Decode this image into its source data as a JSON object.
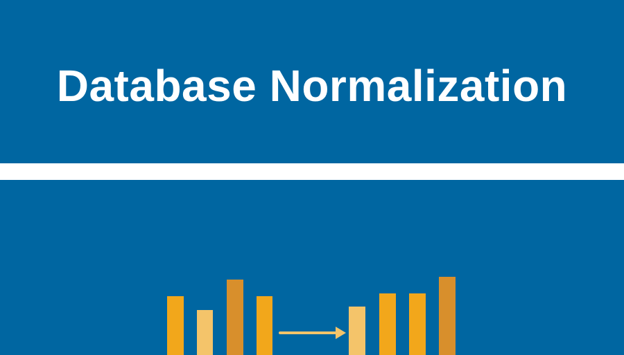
{
  "title": "Database Normalization",
  "colors": {
    "background": "#0066a1",
    "divider": "#ffffff",
    "title_text": "#ffffff",
    "bar_orange": "#f2a71b",
    "bar_light": "#f4c46a",
    "bar_dark": "#d88f2c",
    "arrow": "#f4c46a"
  },
  "illustration": {
    "name": "normalization-bars",
    "left_group": [
      "orange",
      "light",
      "dark",
      "orange"
    ],
    "arrow": "right-arrow",
    "right_group": [
      "light",
      "orange",
      "orange",
      "dark"
    ]
  }
}
